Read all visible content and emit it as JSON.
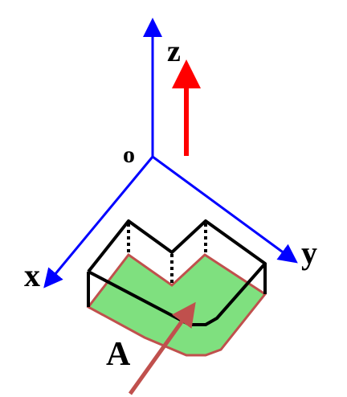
{
  "labels": {
    "z": "z",
    "origin": "o",
    "x": "x",
    "y": "y",
    "a": "A"
  },
  "colors": {
    "axes": "#0000ff",
    "z_direction_arrow": "#ff0000",
    "region_fill": "#7fe07f",
    "region_outline": "#c0504d",
    "solid_edges": "#000000",
    "arrow_a": "#c0504d"
  }
}
